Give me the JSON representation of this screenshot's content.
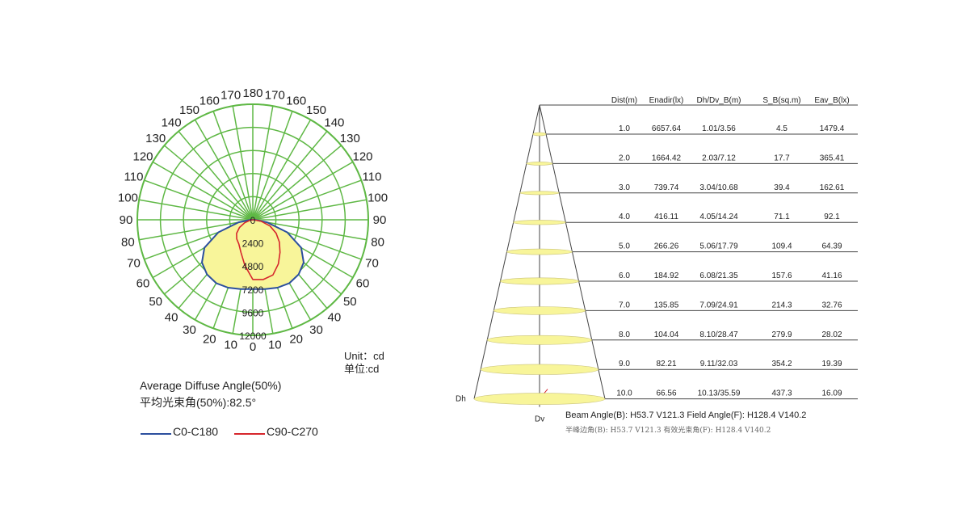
{
  "polar": {
    "angle_labels_left": [
      "180",
      "170",
      "160",
      "150",
      "140",
      "130",
      "120",
      "110",
      "100",
      "90",
      "80",
      "70",
      "60",
      "50",
      "40",
      "30",
      "20",
      "10",
      "0"
    ],
    "angle_labels_right": [
      "170",
      "160",
      "150",
      "140",
      "130",
      "120",
      "110",
      "100",
      "90",
      "80",
      "70",
      "60",
      "50",
      "40",
      "30",
      "20",
      "10"
    ],
    "radial_labels": [
      "0",
      "2400",
      "4800",
      "7200",
      "9600",
      "12000"
    ],
    "unit_en": "Unit：cd",
    "unit_cn": "单位:cd",
    "average_angle_en": "Average Diffuse Angle(50%)",
    "average_angle_cn": "平均光束角(50%):82.5°",
    "colors": {
      "grid": "#5fb845",
      "fill": "#f8f59a",
      "c0": "#2c4f9e",
      "c90": "#d6262c"
    }
  },
  "chart_data": [
    {
      "type": "polar",
      "unit": "cd",
      "radial_max": 12000,
      "radial_ticks": [
        0,
        2400,
        4800,
        7200,
        9600,
        12000
      ],
      "angle_ticks_deg": [
        0,
        10,
        20,
        30,
        40,
        50,
        60,
        70,
        80,
        90,
        100,
        110,
        120,
        130,
        140,
        150,
        160,
        170,
        180
      ],
      "series": [
        {
          "name": "C0-C180",
          "angles": [
            0,
            10,
            20,
            30,
            40,
            50,
            60,
            70,
            80,
            90
          ],
          "values": [
            7200,
            7300,
            7500,
            7600,
            7400,
            6900,
            5800,
            3800,
            1500,
            200
          ]
        },
        {
          "name": "C90-C270",
          "angles_left": [
            0,
            10,
            20,
            30,
            40,
            50,
            60,
            70,
            80,
            90
          ],
          "values_left": [
            6200,
            4800,
            3600,
            2900,
            2600,
            2200,
            1600,
            900,
            300,
            50
          ],
          "angles_right": [
            0,
            10,
            20,
            30,
            40,
            50,
            60,
            70,
            80,
            90
          ],
          "values_right": [
            6200,
            6300,
            6100,
            5300,
            4400,
            3600,
            2800,
            1900,
            900,
            100
          ]
        }
      ]
    },
    {
      "type": "table",
      "columns": [
        "Dist(m)",
        "Enadir(lx)",
        "Dh/Dv_B(m)",
        "S_B(sq.m)",
        "Eav_B(lx)"
      ],
      "rows": [
        [
          "1.0",
          "6657.64",
          "1.01/3.56",
          "4.5",
          "1479.4"
        ],
        [
          "2.0",
          "1664.42",
          "2.03/7.12",
          "17.7",
          "365.41"
        ],
        [
          "3.0",
          "739.74",
          "3.04/10.68",
          "39.4",
          "162.61"
        ],
        [
          "4.0",
          "416.11",
          "4.05/14.24",
          "71.1",
          "92.1"
        ],
        [
          "5.0",
          "266.26",
          "5.06/17.79",
          "109.4",
          "64.39"
        ],
        [
          "6.0",
          "184.92",
          "6.08/21.35",
          "157.6",
          "41.16"
        ],
        [
          "7.0",
          "135.85",
          "7.09/24.91",
          "214.3",
          "32.76"
        ],
        [
          "8.0",
          "104.04",
          "8.10/28.47",
          "279.9",
          "28.02"
        ],
        [
          "9.0",
          "82.21",
          "9.11/32.03",
          "354.2",
          "19.39"
        ],
        [
          "10.0",
          "66.56",
          "10.13/35.59",
          "437.3",
          "16.09"
        ]
      ],
      "dh_label": "Dh",
      "dv_label": "Dv",
      "beam_label_en": "Beam Angle(B): H53.7 V121.3  Field Angle(F): H128.4 V140.2",
      "beam_label_cn": "半峰边角(B): H53.7 V121.3  有效光束角(F): H128.4 V140.2"
    }
  ],
  "legend": [
    {
      "name": "C0-C180",
      "color": "#2c4f9e"
    },
    {
      "name": "C90-C270",
      "color": "#d6262c"
    }
  ]
}
